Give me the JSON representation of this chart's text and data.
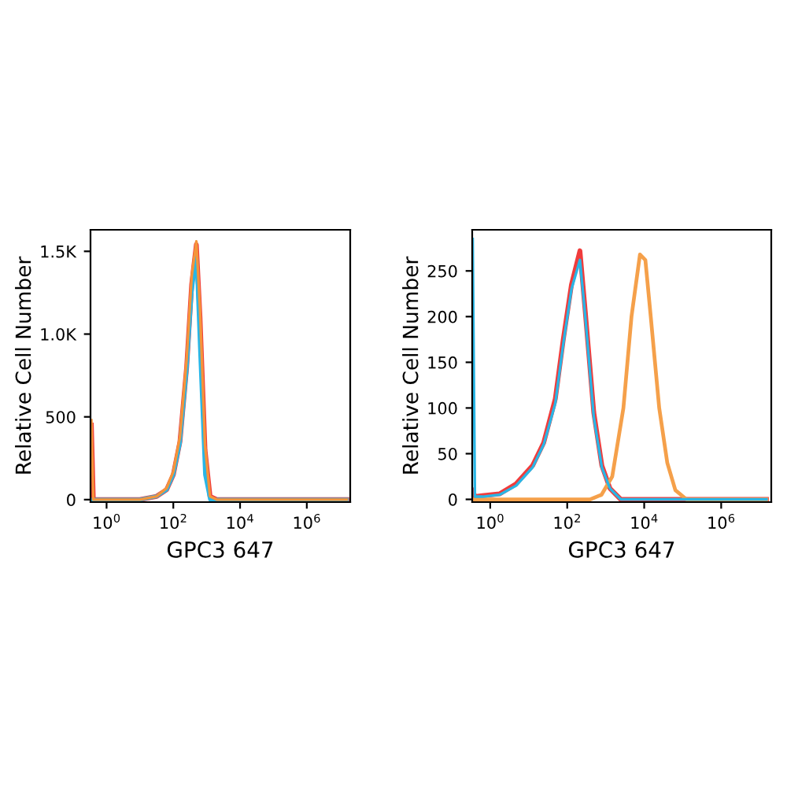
{
  "chart_data": [
    {
      "type": "line",
      "xlabel": "GPC3 647",
      "ylabel": "Relative Cell Number",
      "log": "x",
      "grid": false,
      "legend": false,
      "marker": "none",
      "line_style": "solid",
      "xlim": [
        0.33,
        20000000
      ],
      "xticks": [
        {
          "value": 1,
          "label": "10$^{0}$"
        },
        {
          "value": 100,
          "label": "10$^{2}$"
        },
        {
          "value": 10000,
          "label": "10$^{4}$"
        },
        {
          "value": 1000000,
          "label": "10$^{6}$"
        }
      ],
      "ylim": [
        -15,
        1630
      ],
      "yticks": [
        0,
        500,
        {
          "value": 1000,
          "label": "1.0K"
        },
        {
          "value": 1500,
          "label": "1.5K"
        }
      ],
      "series": [
        {
          "color": "#f03c3c",
          "x": [
            0.35,
            0.4,
            10,
            31.6,
            63,
            100,
            158,
            251,
            355,
            490,
            631,
            891,
            1259,
            1995,
            15800000
          ],
          "values": [
            450,
            0,
            0,
            20,
            60,
            150,
            350,
            800,
            1300,
            1540,
            1100,
            300,
            20,
            0,
            0
          ]
        },
        {
          "color": "#29b6e6",
          "x": [
            0.35,
            0.4,
            10,
            31.6,
            63,
            100,
            158,
            251,
            355,
            490,
            631,
            891,
            1259,
            1995,
            15800000
          ],
          "values": [
            0,
            0,
            0,
            20,
            60,
            150,
            340,
            780,
            1250,
            1480,
            900,
            150,
            0,
            0,
            0
          ]
        },
        {
          "color": "#f5943a",
          "x": [
            0.35,
            0.4,
            10,
            31.6,
            63,
            100,
            158,
            251,
            355,
            490,
            631,
            891,
            1259,
            1995,
            15800000
          ],
          "values": [
            480,
            0,
            0,
            20,
            70,
            170,
            380,
            850,
            1350,
            1560,
            1150,
            330,
            20,
            0,
            0
          ]
        }
      ]
    },
    {
      "type": "line",
      "xlabel": "GPC3 647",
      "ylabel": "Relative Cell Number",
      "log": "x",
      "grid": false,
      "legend": false,
      "marker": "none",
      "line_style": "solid",
      "xlim": [
        0.34,
        20000000
      ],
      "xticks": [
        {
          "value": 1,
          "label": "10$^{0}$"
        },
        {
          "value": 100,
          "label": "10$^{2}$"
        },
        {
          "value": 10000,
          "label": "10$^{4}$"
        },
        {
          "value": 1000000,
          "label": "10$^{6}$"
        }
      ],
      "ylim": [
        -3,
        295
      ],
      "yticks": [
        0,
        50,
        100,
        150,
        200,
        250
      ],
      "series": [
        {
          "color": "#f03c3c",
          "x": [
            0.35,
            0.4,
            0.63,
            1.74,
            4.7,
            12.6,
            24.5,
            49,
            79,
            129,
            214,
            295,
            490,
            794,
            1288,
            2455,
            15000000
          ],
          "values": [
            10,
            3,
            4,
            6,
            17,
            37,
            62,
            110,
            175,
            235,
            272,
            205,
            95,
            37,
            12,
            0,
            0
          ]
        },
        {
          "color": "#f5a04a",
          "x": [
            0.35,
            398,
            776,
            1479,
            2884,
            4677,
            7762,
            10715,
            14791,
            24547,
            39811,
            64565,
            125893,
            15000000
          ],
          "values": [
            0,
            0,
            5,
            25,
            100,
            200,
            268,
            262,
            200,
            100,
            40,
            10,
            0,
            0
          ]
        },
        {
          "color": "#29b6e6",
          "x": [
            0.35,
            0.4,
            0.63,
            1.74,
            4.7,
            12.6,
            24.5,
            49,
            79,
            129,
            214,
            295,
            490,
            794,
            1288,
            2455,
            15000000
          ],
          "values": [
            285,
            3,
            3,
            5,
            15,
            35,
            60,
            105,
            170,
            230,
            262,
            200,
            90,
            35,
            12,
            0,
            0
          ]
        }
      ]
    }
  ]
}
